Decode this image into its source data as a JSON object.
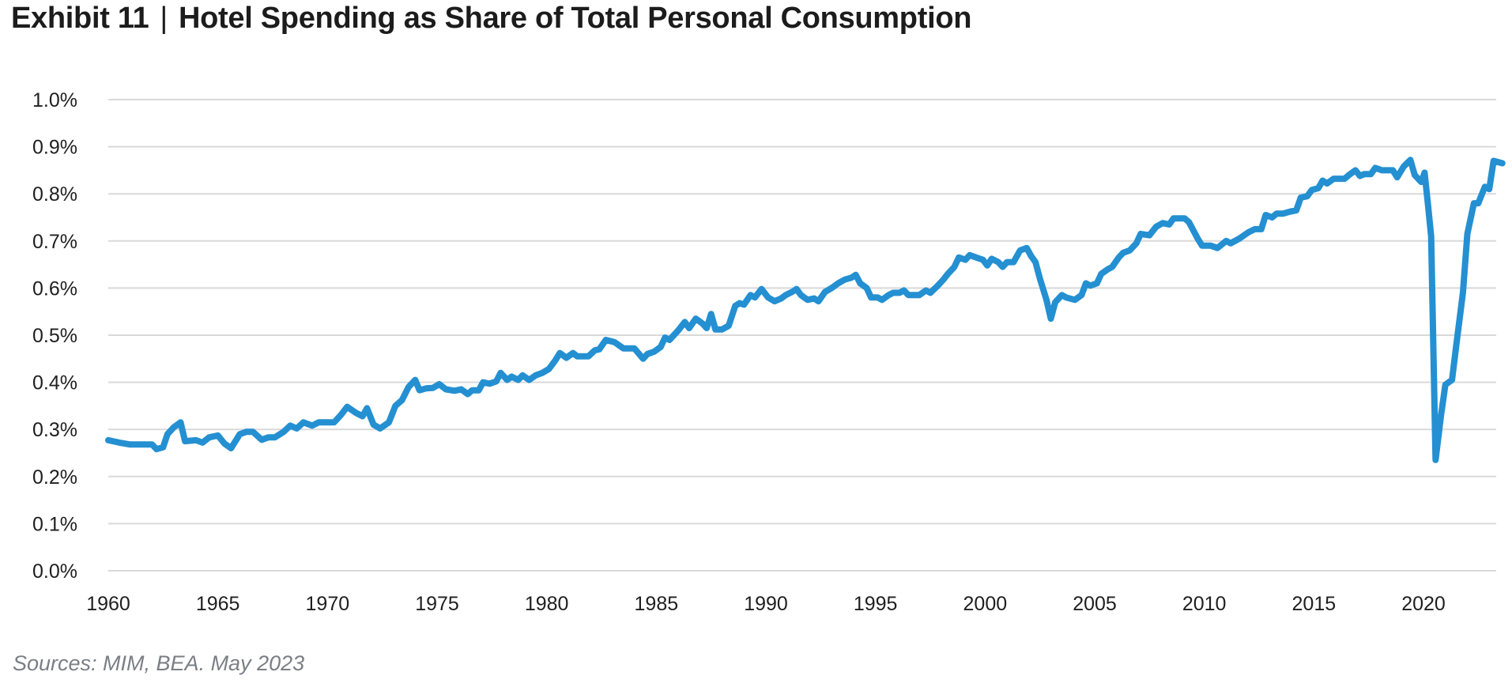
{
  "title": {
    "exhibit": "Exhibit 11",
    "separator": "|",
    "text": "Hotel Spending as Share of Total Personal Consumption"
  },
  "source": "Sources: MIM, BEA. May 2023",
  "colors": {
    "line": "#2490d2",
    "grid": "#d9d9d9"
  },
  "chart_data": {
    "type": "line",
    "title": "Hotel Spending as Share of Total Personal Consumption",
    "xlabel": "",
    "ylabel": "",
    "xlim": [
      1960,
      2023.6
    ],
    "ylim": [
      0,
      1.0
    ],
    "grid": true,
    "x_ticks": [
      "1960",
      "1965",
      "1970",
      "1975",
      "1980",
      "1985",
      "1990",
      "1995",
      "2000",
      "2005",
      "2010",
      "2015",
      "2020"
    ],
    "y_ticks": [
      "0.0%",
      "0.1%",
      "0.2%",
      "0.3%",
      "0.4%",
      "0.5%",
      "0.6%",
      "0.7%",
      "0.8%",
      "0.9%",
      "1.0%"
    ],
    "series": [
      {
        "name": "Hotel spending share (%)",
        "points": [
          [
            1960,
            0.277
          ],
          [
            1960.5,
            0.272
          ],
          [
            1961,
            0.268
          ],
          [
            1962,
            0.268
          ],
          [
            1962.2,
            0.258
          ],
          [
            1962.5,
            0.262
          ],
          [
            1962.7,
            0.29
          ],
          [
            1963,
            0.305
          ],
          [
            1963.3,
            0.315
          ],
          [
            1963.5,
            0.275
          ],
          [
            1964,
            0.277
          ],
          [
            1964.3,
            0.272
          ],
          [
            1964.6,
            0.283
          ],
          [
            1965,
            0.287
          ],
          [
            1965.3,
            0.27
          ],
          [
            1965.6,
            0.26
          ],
          [
            1966,
            0.29
          ],
          [
            1966.3,
            0.295
          ],
          [
            1966.6,
            0.295
          ],
          [
            1967,
            0.278
          ],
          [
            1967.3,
            0.283
          ],
          [
            1967.6,
            0.283
          ],
          [
            1968,
            0.295
          ],
          [
            1968.3,
            0.308
          ],
          [
            1968.6,
            0.302
          ],
          [
            1968.9,
            0.315
          ],
          [
            1969.3,
            0.308
          ],
          [
            1969.6,
            0.315
          ],
          [
            1970.3,
            0.315
          ],
          [
            1970.6,
            0.33
          ],
          [
            1970.9,
            0.348
          ],
          [
            1971.3,
            0.335
          ],
          [
            1971.6,
            0.328
          ],
          [
            1971.8,
            0.345
          ],
          [
            1972.1,
            0.31
          ],
          [
            1972.4,
            0.302
          ],
          [
            1972.8,
            0.315
          ],
          [
            1973.1,
            0.35
          ],
          [
            1973.4,
            0.362
          ],
          [
            1973.7,
            0.39
          ],
          [
            1974,
            0.405
          ],
          [
            1974.2,
            0.383
          ],
          [
            1974.5,
            0.387
          ],
          [
            1974.8,
            0.388
          ],
          [
            1975.1,
            0.396
          ],
          [
            1975.4,
            0.385
          ],
          [
            1975.8,
            0.382
          ],
          [
            1976.1,
            0.385
          ],
          [
            1976.4,
            0.375
          ],
          [
            1976.6,
            0.383
          ],
          [
            1976.9,
            0.383
          ],
          [
            1977.1,
            0.4
          ],
          [
            1977.4,
            0.397
          ],
          [
            1977.7,
            0.402
          ],
          [
            1977.9,
            0.42
          ],
          [
            1978.2,
            0.405
          ],
          [
            1978.4,
            0.412
          ],
          [
            1978.7,
            0.405
          ],
          [
            1978.9,
            0.415
          ],
          [
            1979.2,
            0.405
          ],
          [
            1979.5,
            0.415
          ],
          [
            1979.8,
            0.42
          ],
          [
            1980.1,
            0.428
          ],
          [
            1980.4,
            0.447
          ],
          [
            1980.6,
            0.462
          ],
          [
            1980.9,
            0.452
          ],
          [
            1981.2,
            0.462
          ],
          [
            1981.4,
            0.455
          ],
          [
            1981.9,
            0.455
          ],
          [
            1982.2,
            0.468
          ],
          [
            1982.4,
            0.47
          ],
          [
            1982.7,
            0.49
          ],
          [
            1983.1,
            0.485
          ],
          [
            1983.5,
            0.472
          ],
          [
            1984,
            0.472
          ],
          [
            1984.4,
            0.45
          ],
          [
            1984.6,
            0.46
          ],
          [
            1984.9,
            0.465
          ],
          [
            1985.2,
            0.475
          ],
          [
            1985.4,
            0.495
          ],
          [
            1985.6,
            0.49
          ],
          [
            1986,
            0.51
          ],
          [
            1986.3,
            0.528
          ],
          [
            1986.5,
            0.515
          ],
          [
            1986.8,
            0.535
          ],
          [
            1987.1,
            0.525
          ],
          [
            1987.3,
            0.515
          ],
          [
            1987.5,
            0.545
          ],
          [
            1987.7,
            0.512
          ],
          [
            1988,
            0.512
          ],
          [
            1988.3,
            0.52
          ],
          [
            1988.6,
            0.562
          ],
          [
            1988.8,
            0.568
          ],
          [
            1989,
            0.565
          ],
          [
            1989.3,
            0.585
          ],
          [
            1989.5,
            0.58
          ],
          [
            1989.8,
            0.598
          ],
          [
            1990.1,
            0.58
          ],
          [
            1990.4,
            0.572
          ],
          [
            1990.7,
            0.578
          ],
          [
            1990.9,
            0.585
          ],
          [
            1991.2,
            0.592
          ],
          [
            1991.4,
            0.598
          ],
          [
            1991.6,
            0.585
          ],
          [
            1991.9,
            0.575
          ],
          [
            1992.2,
            0.578
          ],
          [
            1992.4,
            0.572
          ],
          [
            1992.7,
            0.592
          ],
          [
            1993,
            0.6
          ],
          [
            1993.3,
            0.61
          ],
          [
            1993.6,
            0.618
          ],
          [
            1993.9,
            0.622
          ],
          [
            1994.1,
            0.628
          ],
          [
            1994.3,
            0.61
          ],
          [
            1994.6,
            0.6
          ],
          [
            1994.8,
            0.58
          ],
          [
            1995.1,
            0.58
          ],
          [
            1995.3,
            0.575
          ],
          [
            1995.6,
            0.585
          ],
          [
            1995.8,
            0.59
          ],
          [
            1996.1,
            0.59
          ],
          [
            1996.3,
            0.595
          ],
          [
            1996.5,
            0.585
          ],
          [
            1997,
            0.585
          ],
          [
            1997.3,
            0.595
          ],
          [
            1997.5,
            0.59
          ],
          [
            1997.8,
            0.603
          ],
          [
            1998.1,
            0.618
          ],
          [
            1998.3,
            0.63
          ],
          [
            1998.6,
            0.645
          ],
          [
            1998.8,
            0.665
          ],
          [
            1999.1,
            0.66
          ],
          [
            1999.3,
            0.67
          ],
          [
            1999.6,
            0.665
          ],
          [
            1999.9,
            0.66
          ],
          [
            2000.1,
            0.648
          ],
          [
            2000.3,
            0.662
          ],
          [
            2000.6,
            0.655
          ],
          [
            2000.8,
            0.645
          ],
          [
            2001,
            0.655
          ],
          [
            2001.3,
            0.655
          ],
          [
            2001.6,
            0.68
          ],
          [
            2001.9,
            0.685
          ],
          [
            2002.1,
            0.668
          ],
          [
            2002.3,
            0.655
          ],
          [
            2002.5,
            0.62
          ],
          [
            2002.8,
            0.575
          ],
          [
            2003,
            0.535
          ],
          [
            2003.2,
            0.57
          ],
          [
            2003.5,
            0.585
          ],
          [
            2003.7,
            0.58
          ],
          [
            2004.1,
            0.575
          ],
          [
            2004.4,
            0.585
          ],
          [
            2004.6,
            0.61
          ],
          [
            2004.8,
            0.605
          ],
          [
            2005.1,
            0.61
          ],
          [
            2005.3,
            0.63
          ],
          [
            2005.6,
            0.64
          ],
          [
            2005.8,
            0.645
          ],
          [
            2006.1,
            0.665
          ],
          [
            2006.3,
            0.675
          ],
          [
            2006.6,
            0.68
          ],
          [
            2006.9,
            0.695
          ],
          [
            2007.1,
            0.715
          ],
          [
            2007.5,
            0.712
          ],
          [
            2007.8,
            0.73
          ],
          [
            2008.1,
            0.738
          ],
          [
            2008.4,
            0.735
          ],
          [
            2008.6,
            0.748
          ],
          [
            2009.1,
            0.748
          ],
          [
            2009.3,
            0.74
          ],
          [
            2009.7,
            0.705
          ],
          [
            2009.9,
            0.69
          ],
          [
            2010.3,
            0.69
          ],
          [
            2010.6,
            0.685
          ],
          [
            2011,
            0.7
          ],
          [
            2011.2,
            0.695
          ],
          [
            2011.6,
            0.705
          ],
          [
            2012,
            0.718
          ],
          [
            2012.3,
            0.725
          ],
          [
            2012.6,
            0.725
          ],
          [
            2012.8,
            0.755
          ],
          [
            2013.1,
            0.75
          ],
          [
            2013.3,
            0.758
          ],
          [
            2013.6,
            0.758
          ],
          [
            2013.9,
            0.762
          ],
          [
            2014.2,
            0.765
          ],
          [
            2014.4,
            0.792
          ],
          [
            2014.7,
            0.795
          ],
          [
            2014.9,
            0.808
          ],
          [
            2015.2,
            0.812
          ],
          [
            2015.4,
            0.828
          ],
          [
            2015.6,
            0.822
          ],
          [
            2015.9,
            0.832
          ],
          [
            2016.4,
            0.832
          ],
          [
            2016.6,
            0.84
          ],
          [
            2016.9,
            0.85
          ],
          [
            2017.1,
            0.838
          ],
          [
            2017.3,
            0.842
          ],
          [
            2017.6,
            0.842
          ],
          [
            2017.8,
            0.855
          ],
          [
            2018.1,
            0.85
          ],
          [
            2018.6,
            0.85
          ],
          [
            2018.8,
            0.835
          ],
          [
            2019.1,
            0.858
          ],
          [
            2019.4,
            0.872
          ],
          [
            2019.6,
            0.84
          ],
          [
            2019.9,
            0.825
          ],
          [
            2020.05,
            0.845
          ],
          [
            2020.2,
            0.78
          ],
          [
            2020.35,
            0.71
          ],
          [
            2020.55,
            0.235
          ],
          [
            2020.8,
            0.33
          ],
          [
            2021,
            0.395
          ],
          [
            2021.3,
            0.405
          ],
          [
            2021.5,
            0.48
          ],
          [
            2021.8,
            0.59
          ],
          [
            2022,
            0.715
          ],
          [
            2022.3,
            0.78
          ],
          [
            2022.5,
            0.78
          ],
          [
            2022.8,
            0.815
          ],
          [
            2023,
            0.81
          ],
          [
            2023.2,
            0.87
          ],
          [
            2023.6,
            0.865
          ]
        ]
      }
    ]
  }
}
